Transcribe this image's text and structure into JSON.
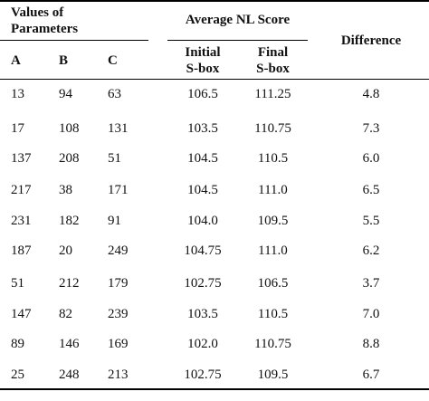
{
  "table": {
    "headers": {
      "values_of_parameters": "Values of\nParameters",
      "average_nl_score": "Average NL Score",
      "difference": "Difference",
      "col_a": "A",
      "col_b": "B",
      "col_c": "C",
      "initial_sbox": "Initial\nS-box",
      "final_sbox": "Final\nS-box"
    },
    "rows": [
      {
        "a": "13",
        "b": "94",
        "c": "63",
        "initial": "106.5",
        "final": "111.25",
        "difference": "4.8"
      },
      {
        "a": "17",
        "b": "108",
        "c": "131",
        "initial": "103.5",
        "final": "110.75",
        "difference": "7.3"
      },
      {
        "a": "137",
        "b": "208",
        "c": "51",
        "initial": "104.5",
        "final": "110.5",
        "difference": "6.0"
      },
      {
        "a": "217",
        "b": "38",
        "c": "171",
        "initial": "104.5",
        "final": "111.0",
        "difference": "6.5"
      },
      {
        "a": "231",
        "b": "182",
        "c": "91",
        "initial": "104.0",
        "final": "109.5",
        "difference": "5.5"
      },
      {
        "a": "187",
        "b": "20",
        "c": "249",
        "initial": "104.75",
        "final": "111.0",
        "difference": "6.2"
      },
      {
        "a": "51",
        "b": "212",
        "c": "179",
        "initial": "102.75",
        "final": "106.5",
        "difference": "3.7"
      },
      {
        "a": "147",
        "b": "82",
        "c": "239",
        "initial": "103.5",
        "final": "110.5",
        "difference": "7.0"
      },
      {
        "a": "89",
        "b": "146",
        "c": "169",
        "initial": "102.0",
        "final": "110.75",
        "difference": "8.8"
      },
      {
        "a": "25",
        "b": "248",
        "c": "213",
        "initial": "102.75",
        "final": "109.5",
        "difference": "6.7"
      }
    ]
  }
}
